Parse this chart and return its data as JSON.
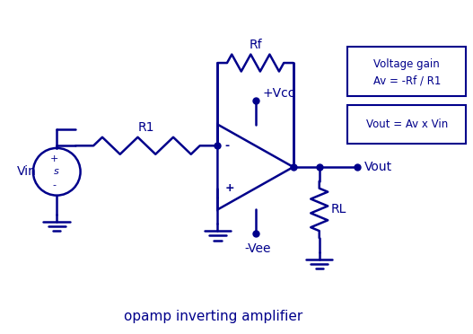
{
  "bg_color": "#ffffff",
  "line_color": "#00008B",
  "text_color": "#00008B",
  "title_text": "opamp inverting amplifier",
  "title_fontsize": 11,
  "label_fontsize": 10,
  "box1_text": "Voltage gain\nAv = -Rf / R1",
  "box2_text": "Vout = Av x Vin",
  "label_Vin": "Vin",
  "label_Vout": "Vout",
  "label_R1": "R1",
  "label_Rf": "Rf",
  "label_RL": "RL",
  "label_Vcc": "+Vcc",
  "label_Vee": "-Vee",
  "label_plus": "+",
  "label_minus": "-"
}
